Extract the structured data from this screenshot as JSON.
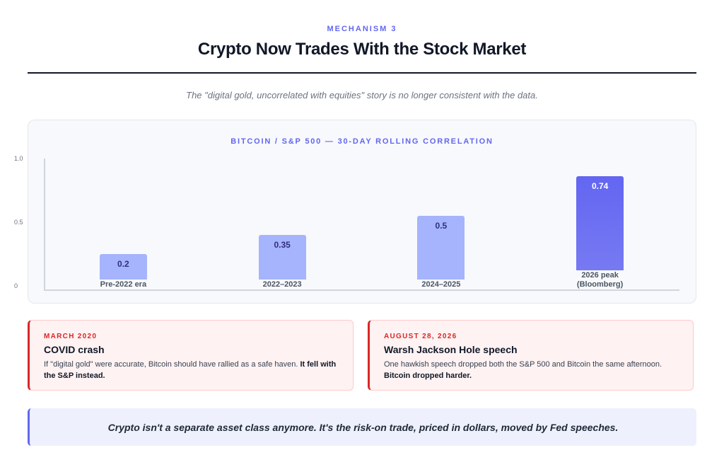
{
  "header": {
    "eyebrow": "MECHANISM 3",
    "title": "Crypto Now Trades With the Stock Market",
    "subtitle": "The \"digital gold, uncorrelated with equities\" story is no longer consistent with the data."
  },
  "chart_data": {
    "type": "bar",
    "title": "BITCOIN / S&P 500 — 30-DAY ROLLING CORRELATION",
    "categories": [
      "Pre-2022 era",
      "2022–2023",
      "2024–2025",
      "2026 peak (Bloomberg)"
    ],
    "values": [
      0.2,
      0.35,
      0.5,
      0.74
    ],
    "colors": [
      "#a5b4fc",
      "#a5b4fc",
      "#a5b4fc",
      "#6366f1"
    ],
    "ylim": [
      0,
      1
    ],
    "yticks": [
      0,
      0.5,
      {
        "value": 1,
        "label": "1.0"
      }
    ]
  },
  "cards": [
    {
      "label": "MARCH 2020",
      "title": "COVID crash",
      "body": "If \"digital gold\" were accurate, Bitcoin should have rallied as a safe haven.",
      "emphasis": "It fell with the S&P instead."
    },
    {
      "label": "AUGUST 28, 2026",
      "title": "Warsh Jackson Hole speech",
      "body": "One hawkish speech dropped both the S&P 500 and Bitcoin the same afternoon.",
      "emphasis": "Bitcoin dropped harder."
    }
  ],
  "callout": "Crypto isn't a separate asset class anymore. It's the risk-on trade, priced in dollars, moved by Fed speeches."
}
